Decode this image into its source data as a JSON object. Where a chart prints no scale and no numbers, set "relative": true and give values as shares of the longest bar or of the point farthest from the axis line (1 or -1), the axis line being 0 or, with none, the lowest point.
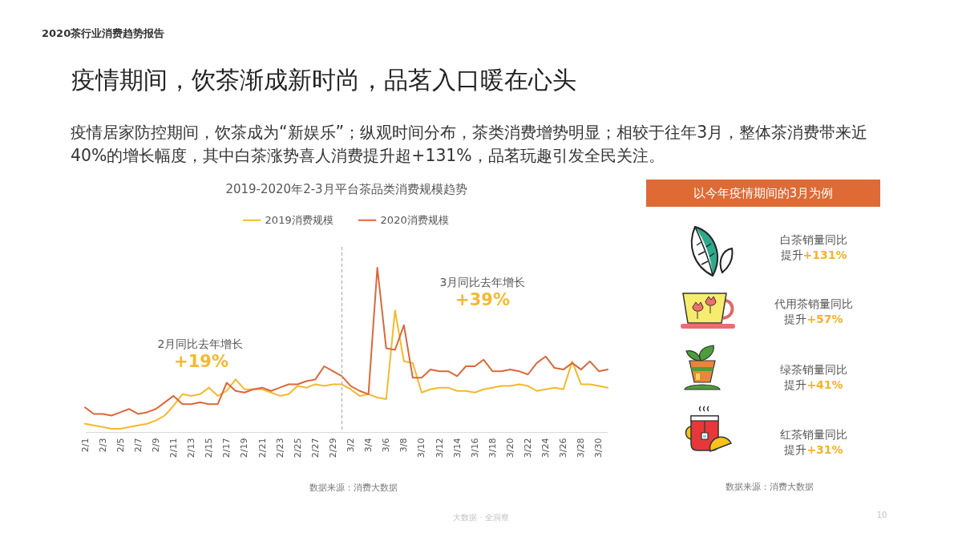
{
  "chart_data": [
    {
      "type": "line",
      "title": "2019-2020年2-3月平台茶品类消费规模趋势",
      "relative": true,
      "legend": "top",
      "x": [
        "--02-01",
        "--02-02",
        "--02-03",
        "--02-04",
        "--02-05",
        "--02-06",
        "--02-07",
        "--02-08",
        "--02-09",
        "--02-10",
        "--02-11",
        "--02-12",
        "--02-13",
        "--02-14",
        "--02-15",
        "--02-16",
        "--02-17",
        "--02-18",
        "--02-19",
        "--02-20",
        "--02-21",
        "--02-22",
        "--02-23",
        "--02-24",
        "--02-25",
        "--02-26",
        "--02-27",
        "--02-28",
        "--02-29",
        "--03-01",
        "--03-02",
        "--03-03",
        "--03-04",
        "--03-05",
        "--03-06",
        "--03-07",
        "--03-08",
        "--03-09",
        "--03-10",
        "--03-11",
        "--03-12",
        "--03-13",
        "--03-14",
        "--03-15",
        "--03-16",
        "--03-17",
        "--03-18",
        "--03-19",
        "--03-20",
        "--03-21",
        "--03-22",
        "--03-23",
        "--03-24",
        "--03-25",
        "--03-26",
        "--03-27",
        "--03-28",
        "--03-29",
        "--03-30",
        "--03-31"
      ],
      "xlim": [
        "--02-01",
        "--03-31"
      ],
      "xticks": [
        {
          "value": "--02-01",
          "label": "2/1"
        },
        {
          "value": "--02-03",
          "label": "2/3"
        },
        {
          "value": "--02-05",
          "label": "2/5"
        },
        {
          "value": "--02-07",
          "label": "2/7"
        },
        {
          "value": "--02-09",
          "label": "2/9"
        },
        {
          "value": "--02-11",
          "label": "2/11"
        },
        {
          "value": "--02-13",
          "label": "2/13"
        },
        {
          "value": "--02-15",
          "label": "2/15"
        },
        {
          "value": "--02-17",
          "label": "2/17"
        },
        {
          "value": "--02-19",
          "label": "2/19"
        },
        {
          "value": "--02-21",
          "label": "2/21"
        },
        {
          "value": "--02-23",
          "label": "2/23"
        },
        {
          "value": "--02-25",
          "label": "2/25"
        },
        {
          "value": "--02-27",
          "label": "2/27"
        },
        {
          "value": "--02-29",
          "label": "2/29"
        },
        {
          "value": "--03-02",
          "label": "3/2"
        },
        {
          "value": "--03-04",
          "label": "3/4"
        },
        {
          "value": "--03-06",
          "label": "3/6"
        },
        {
          "value": "--03-08",
          "label": "3/8"
        },
        {
          "value": "--03-10",
          "label": "3/10"
        },
        {
          "value": "--03-12",
          "label": "3/12"
        },
        {
          "value": "--03-14",
          "label": "3/14"
        },
        {
          "value": "--03-16",
          "label": "3/16"
        },
        {
          "value": "--03-18",
          "label": "3/18"
        },
        {
          "value": "--03-20",
          "label": "3/20"
        },
        {
          "value": "--03-22",
          "label": "3/22"
        },
        {
          "value": "--03-24",
          "label": "3/24"
        },
        {
          "value": "--03-26",
          "label": "3/26"
        },
        {
          "value": "--03-28",
          "label": "3/28"
        },
        {
          "value": "--03-30",
          "label": "3/30"
        }
      ],
      "series": [
        {
          "name": "2019消费规模",
          "color": "#f4b92b",
          "values": [
            0.05,
            0.04,
            0.03,
            0.02,
            0.02,
            0.03,
            0.04,
            0.05,
            0.07,
            0.1,
            0.16,
            0.23,
            0.22,
            0.23,
            0.27,
            0.22,
            0.25,
            0.32,
            0.26,
            0.26,
            0.26,
            0.24,
            0.22,
            0.23,
            0.28,
            0.27,
            0.29,
            0.28,
            0.29,
            0.29,
            0.26,
            0.22,
            0.23,
            0.21,
            0.2,
            0.74,
            0.43,
            0.42,
            0.24,
            0.26,
            0.27,
            0.27,
            0.25,
            0.25,
            0.24,
            0.26,
            0.27,
            0.28,
            0.28,
            0.29,
            0.28,
            0.25,
            0.26,
            0.27,
            0.26,
            0.43,
            0.29,
            0.29,
            0.28,
            0.27
          ]
        },
        {
          "name": "2020消费规模",
          "color": "#d9683a",
          "values": [
            0.15,
            0.11,
            0.11,
            0.1,
            0.12,
            0.14,
            0.11,
            0.12,
            0.14,
            0.18,
            0.22,
            0.17,
            0.17,
            0.18,
            0.17,
            0.17,
            0.3,
            0.25,
            0.24,
            0.26,
            0.27,
            0.25,
            0.27,
            0.29,
            0.29,
            0.31,
            0.32,
            0.4,
            0.37,
            0.34,
            0.28,
            0.25,
            0.23,
            1,
            0.51,
            0.5,
            0.65,
            0.33,
            0.33,
            0.38,
            0.37,
            0.37,
            0.34,
            0.4,
            0.4,
            0.44,
            0.37,
            0.37,
            0.38,
            0.37,
            0.35,
            0.42,
            0.46,
            0.39,
            0.38,
            0.42,
            0.38,
            0.43,
            0.37,
            0.38
          ]
        }
      ],
      "ref_lines": [
        {
          "axis": "x",
          "value": "--03-01",
          "color": "#b9b0ae",
          "line_style": "dashed"
        }
      ],
      "annotations": [
        "2020茶行业消费趋势报告",
        "疫情期间，饮茶渐成新时尚，品茗入口暖在心头",
        "疫情居家防控期间，饮茶成为“新娱乐”；纵观时间分布，茶类消费增势明显；相较于往年3月，整体茶消费带来近40%的增长幅度，其中白茶涨势喜人消费提升超+131%，品茗玩趣引发全民关注。",
        "2月同比去年增长",
        "+19%",
        "3月同比去年增长",
        "+39%",
        "数据来源：消费大数据",
        "大数据 · 全洞察",
        "10"
      ]
    },
    {
      "type": "other",
      "title": "以今年疫情期间的3月为例",
      "annotations": [
        "白茶销量同比",
        "提升",
        "+131%",
        "代用茶销量同比",
        "提升",
        "+57%",
        "绿茶销量同比",
        "提升",
        "+41%",
        "红茶销量同比",
        "提升",
        "+31%",
        "数据来源：消费大数据"
      ]
    }
  ]
}
